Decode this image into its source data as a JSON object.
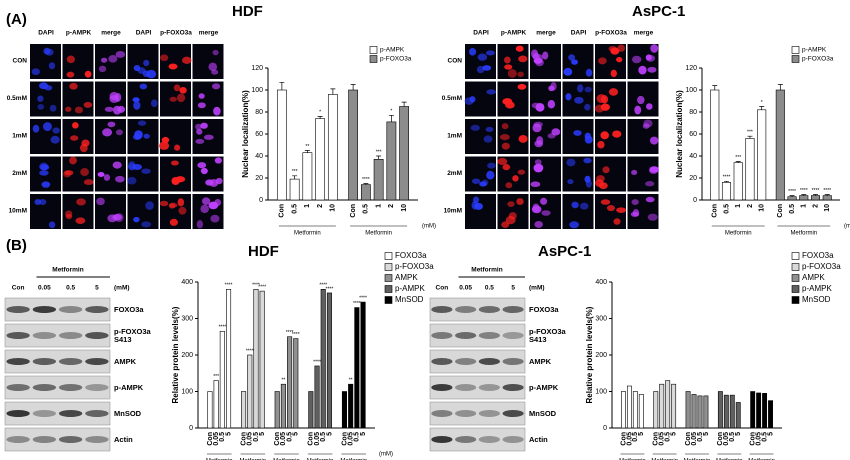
{
  "panel_a": {
    "label": "(A)",
    "hdf_title": "HDF",
    "aspc_title": "AsPC-1",
    "columns": [
      "DAPI",
      "p-AMPK",
      "merge",
      "DAPI",
      "p-FOXO3a",
      "merge"
    ],
    "rows": [
      "CON",
      "0.5mM",
      "1mM",
      "2mM",
      "10mM"
    ]
  },
  "panel_b": {
    "label": "(B)",
    "hdf_title": "HDF",
    "aspc_title": "AsPC-1",
    "treatment": "Metformin",
    "unit": "(mM)",
    "lanes": [
      "Con",
      "0.05",
      "0.5",
      "5"
    ],
    "proteins": [
      "FOXO3a",
      "p-FOXO3a S413",
      "AMPK",
      "p-AMPK",
      "MnSOD",
      "Actin"
    ]
  },
  "chart_data": [
    {
      "type": "bar",
      "ylabel": "Nuclear localization(%)",
      "categories": [
        "Con",
        "0.5",
        "1",
        "2",
        "10"
      ],
      "x_group_label": "Metformin",
      "x_unit": "(mM)",
      "ylim": [
        0,
        120
      ],
      "yticks": [
        0,
        20,
        40,
        60,
        80,
        100,
        120
      ],
      "legend": "upper right",
      "series": [
        {
          "name": "p-AMPK",
          "color": "#ffffff",
          "values": [
            100,
            19,
            43,
            74,
            96
          ],
          "errors": [
            7,
            3,
            2,
            2,
            5
          ],
          "significance": [
            null,
            "***",
            "**",
            "*",
            null
          ]
        },
        {
          "name": "p-FOXO3a",
          "color": "#8c8c8c",
          "values": [
            100,
            14,
            37,
            71,
            85
          ],
          "errors": [
            5,
            1,
            3,
            6,
            4
          ],
          "significance": [
            null,
            "****",
            "***",
            "*",
            null
          ]
        }
      ]
    },
    {
      "type": "bar",
      "ylabel": "Nuclear localization(%)",
      "categories": [
        "Con",
        "0.5",
        "1",
        "2",
        "10"
      ],
      "x_group_label": "Metformin",
      "x_unit": "(mM)",
      "ylim": [
        0,
        120
      ],
      "yticks": [
        0,
        20,
        40,
        60,
        80,
        100,
        120
      ],
      "legend": "upper right",
      "series": [
        {
          "name": "p-AMPK",
          "color": "#ffffff",
          "values": [
            100,
            16,
            34,
            56,
            82
          ],
          "errors": [
            4,
            1,
            1,
            2,
            3
          ],
          "significance": [
            null,
            "****",
            "***",
            "***",
            "*"
          ]
        },
        {
          "name": "p-FOXO3a",
          "color": "#8c8c8c",
          "values": [
            100,
            3,
            4,
            4,
            4
          ],
          "errors": [
            5,
            1,
            1,
            1,
            1
          ],
          "significance": [
            null,
            "****",
            "****",
            "****",
            "****"
          ]
        }
      ]
    },
    {
      "type": "bar",
      "ylabel": "Relative protein levels(%)",
      "categories": [
        "Con",
        "0.05",
        "0.5",
        "5"
      ],
      "x_group_label": "Metformin",
      "x_unit": "(mM)",
      "ylim": [
        0,
        400
      ],
      "yticks": [
        0,
        100,
        200,
        300,
        400
      ],
      "legend": "right",
      "series": [
        {
          "name": "FOXO3a",
          "color": "#ffffff",
          "values": [
            100,
            130,
            265,
            380
          ],
          "significance": [
            null,
            "***",
            "****",
            "****"
          ]
        },
        {
          "name": "p-FOXO3a",
          "color": "#d9d9d9",
          "values": [
            100,
            200,
            380,
            375
          ],
          "significance": [
            null,
            "****",
            "****",
            "****"
          ]
        },
        {
          "name": "AMPK",
          "color": "#909090",
          "values": [
            100,
            120,
            250,
            245
          ],
          "significance": [
            null,
            "**",
            "****",
            "****"
          ]
        },
        {
          "name": "p-AMPK",
          "color": "#606060",
          "values": [
            100,
            170,
            380,
            370
          ],
          "significance": [
            null,
            "****",
            "****",
            "****"
          ]
        },
        {
          "name": "MnSOD",
          "color": "#000000",
          "values": [
            100,
            120,
            330,
            345
          ],
          "significance": [
            null,
            "**",
            "****",
            "****"
          ]
        }
      ]
    },
    {
      "type": "bar",
      "ylabel": "Relative protein levels(%)",
      "categories": [
        "Con",
        "0.05",
        "0.5",
        "5"
      ],
      "x_group_label": "Metformin",
      "ylim": [
        0,
        400
      ],
      "yticks": [
        0,
        100,
        200,
        300,
        400
      ],
      "legend": "right",
      "series": [
        {
          "name": "FOXO3a",
          "color": "#ffffff",
          "values": [
            100,
            115,
            100,
            92
          ]
        },
        {
          "name": "p-FOXO3a",
          "color": "#d9d9d9",
          "values": [
            100,
            120,
            130,
            120
          ]
        },
        {
          "name": "AMPK",
          "color": "#909090",
          "values": [
            100,
            92,
            88,
            88
          ]
        },
        {
          "name": "p-AMPK",
          "color": "#606060",
          "values": [
            100,
            90,
            90,
            70
          ]
        },
        {
          "name": "MnSOD",
          "color": "#000000",
          "values": [
            100,
            96,
            95,
            75
          ]
        }
      ]
    }
  ]
}
